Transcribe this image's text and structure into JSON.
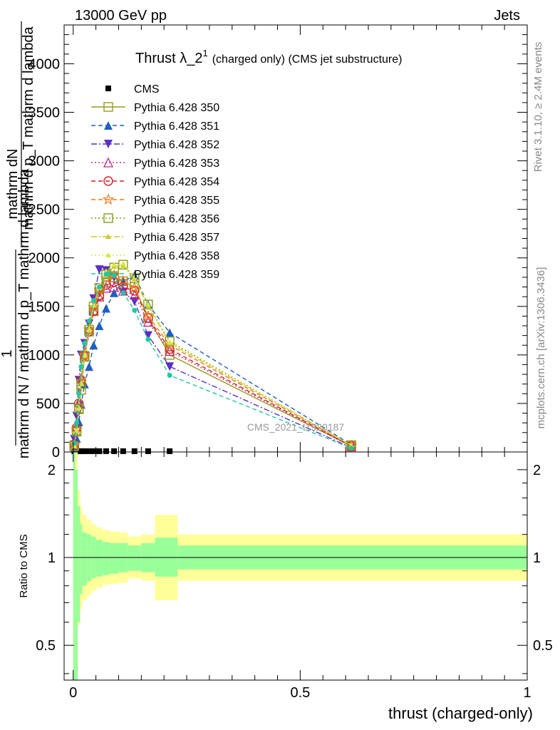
{
  "header": {
    "left": "13000 GeV pp",
    "right": "Jets"
  },
  "title_main": "Thrust λ_2",
  "title_sup": "1",
  "title_sub": "(charged only) (CMS jet substructure)",
  "side_text_top": "Rivet 3.1.10, ≥ 2.4M events",
  "side_text_bottom": "mcplots.cern.ch [arXiv:1306.3436]",
  "watermark": "CMS_2021_I1920187",
  "ylabel_main_top": "mathrm dN",
  "ylabel_main_one": "1",
  "ylabel_main_bottom": "mathrm d N / mathrm d p_T mathrm d lambda",
  "ylabel_main_bottom2": "mathrm d p_T mathrm d lambda",
  "ylabel_ratio": "Ratio to CMS",
  "xlabel": "thrust (charged-only)",
  "colors": {
    "s350": "#9a9a1e",
    "s351": "#1f5fbf",
    "s352": "#5a2fc7",
    "s353": "#c0288a",
    "s354": "#d4202a",
    "s355": "#f07820",
    "s356": "#8a9a10",
    "s357": "#c8c828",
    "s358": "#d8e840",
    "s359": "#20c8a0",
    "band_inner": "#99ff99",
    "band_outer": "#ffff99"
  },
  "chart_data": [
    {
      "type": "line",
      "panel": "main",
      "x": [
        0.0025,
        0.0075,
        0.0125,
        0.0175,
        0.025,
        0.035,
        0.045,
        0.0575,
        0.0725,
        0.09,
        0.11,
        0.135,
        0.165,
        0.2125,
        0.6125
      ],
      "xlim": [
        -0.02,
        1.0
      ],
      "ylim": [
        0,
        4400
      ],
      "yticks": [
        0,
        500,
        1000,
        1500,
        2000,
        2500,
        3000,
        3500,
        4000
      ],
      "series": [
        {
          "name": "CMS",
          "marker": "square-filled",
          "values": [
            8,
            8,
            8,
            8,
            8,
            8,
            8,
            8,
            8,
            8,
            8,
            8,
            8,
            8,
            null
          ]
        },
        {
          "name": "Pythia 6.428 350",
          "marker": "square-open",
          "values": [
            70,
            220,
            440,
            640,
            980,
            1240,
            1450,
            1620,
            1750,
            1800,
            1760,
            1700,
            1380,
            1000,
            60
          ]
        },
        {
          "name": "Pythia 6.428 351",
          "marker": "triangle-up-filled",
          "values": [
            40,
            140,
            310,
            490,
            700,
            880,
            1100,
            1300,
            1480,
            1640,
            1760,
            1820,
            1520,
            1230,
            75
          ]
        },
        {
          "name": "Pythia 6.428 352",
          "marker": "triangle-down-filled",
          "values": [
            130,
            370,
            740,
            1000,
            1120,
            1320,
            1580,
            1880,
            1870,
            1800,
            1650,
            1550,
            1200,
            880,
            45
          ]
        },
        {
          "name": "Pythia 6.428 353",
          "marker": "triangle-up-open",
          "values": [
            85,
            260,
            510,
            760,
            1020,
            1260,
            1460,
            1600,
            1690,
            1700,
            1660,
            1620,
            1340,
            1040,
            55
          ]
        },
        {
          "name": "Pythia 6.428 354",
          "marker": "circle-open",
          "values": [
            80,
            250,
            500,
            740,
            1000,
            1240,
            1450,
            1610,
            1720,
            1750,
            1700,
            1660,
            1380,
            1060,
            60
          ]
        },
        {
          "name": "Pythia 6.428 355",
          "marker": "star-open",
          "values": [
            70,
            230,
            470,
            720,
            1000,
            1260,
            1490,
            1670,
            1790,
            1820,
            1760,
            1690,
            1400,
            1100,
            65
          ]
        },
        {
          "name": "Pythia 6.428 356",
          "marker": "square-open",
          "values": [
            60,
            210,
            450,
            700,
            990,
            1260,
            1500,
            1690,
            1830,
            1900,
            1930,
            1790,
            1520,
            1140,
            70
          ]
        },
        {
          "name": "Pythia 6.428 357",
          "marker": "tri-small",
          "values": [
            65,
            220,
            460,
            710,
            1000,
            1270,
            1510,
            1700,
            1840,
            1910,
            1920,
            1780,
            1500,
            1120,
            68
          ]
        },
        {
          "name": "Pythia 6.428 358",
          "marker": "tri-small",
          "values": [
            60,
            215,
            455,
            700,
            995,
            1265,
            1510,
            1710,
            1860,
            1930,
            1940,
            1800,
            1520,
            1130,
            70
          ]
        },
        {
          "name": "Pythia 6.428 359",
          "marker": "circle-small",
          "values": [
            90,
            300,
            600,
            880,
            1120,
            1350,
            1560,
            1700,
            1830,
            1820,
            1640,
            1460,
            1160,
            790,
            40
          ]
        }
      ]
    },
    {
      "type": "area",
      "panel": "ratio",
      "x_edges": [
        0.0,
        0.005,
        0.01,
        0.015,
        0.02,
        0.03,
        0.04,
        0.05,
        0.065,
        0.08,
        0.1,
        0.12,
        0.15,
        0.18,
        0.23,
        1.0
      ],
      "xlim": [
        -0.02,
        1.0
      ],
      "ylim": [
        0.38,
        2.3
      ],
      "log_scale": true,
      "xticks": [
        0,
        0.5,
        1
      ],
      "xtick_labels": [
        "0",
        "0.5",
        "1"
      ],
      "yticks": [
        0.5,
        1,
        2
      ],
      "ytick_labels": [
        "0.5",
        "1",
        "2"
      ],
      "reference_line": 1,
      "band_inner": {
        "upper": [
          2.4,
          2.0,
          1.5,
          1.3,
          1.22,
          1.2,
          1.18,
          1.15,
          1.13,
          1.12,
          1.12,
          1.1,
          1.12,
          1.17,
          1.1
        ],
        "lower": [
          0.2,
          0.35,
          0.6,
          0.75,
          0.8,
          0.83,
          0.85,
          0.86,
          0.87,
          0.88,
          0.89,
          0.9,
          0.89,
          0.86,
          0.91
        ]
      },
      "band_outer": {
        "upper": [
          2.6,
          2.4,
          1.7,
          1.5,
          1.4,
          1.35,
          1.3,
          1.27,
          1.24,
          1.23,
          1.22,
          1.18,
          1.2,
          1.4,
          1.2
        ]
      }
    }
  ]
}
